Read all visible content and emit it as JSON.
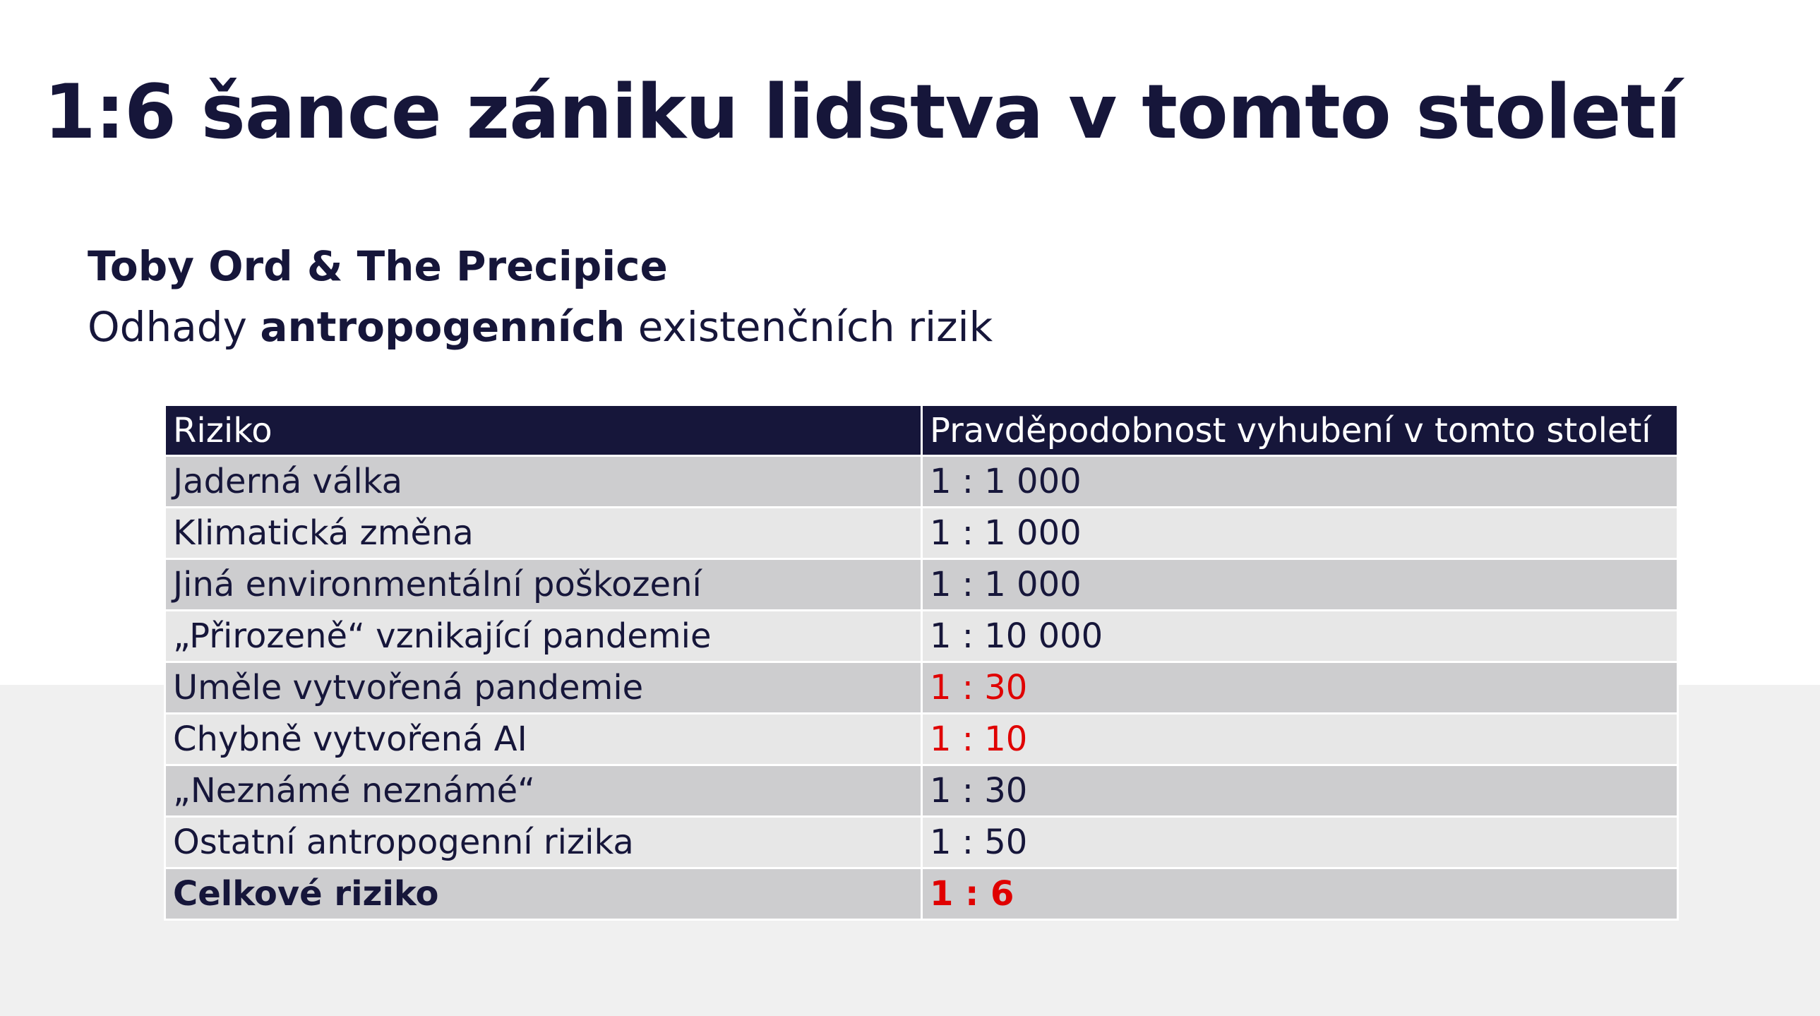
{
  "slide": {
    "title": "1:6 šance zániku lidstva v tomto století",
    "author_line": "Toby Ord & The Precipice",
    "description": {
      "before": "Odhady ",
      "emphasis": "antropogenních",
      "after": " existenčních rizik"
    }
  },
  "table": {
    "headers": [
      "Riziko",
      "Pravděpodobnost vyhubení v tomto století"
    ],
    "rows": [
      {
        "risk": "Jaderná válka",
        "probability": "1 : 1 000"
      },
      {
        "risk": "Klimatická změna",
        "probability": "1 : 1 000"
      },
      {
        "risk": "Jiná environmentální poškození",
        "probability": "1 : 1 000"
      },
      {
        "risk": "„Přirozeně“ vznikající pandemie",
        "probability": "1 : 10 000"
      },
      {
        "risk": "Uměle vytvořená pandemie",
        "probability": "1 : 30"
      },
      {
        "risk": "Chybně vytvořená AI",
        "probability": "1 : 10"
      },
      {
        "risk": "„Neznámé neznámé“",
        "probability": "1 : 30"
      },
      {
        "risk": "Ostatní antropogenní rizika",
        "probability": "1 : 50"
      },
      {
        "risk": "Celkové riziko",
        "probability": "1 : 6"
      }
    ]
  },
  "colors": {
    "primary": "#16163a",
    "highlight": "#e00000",
    "row_dark": "#cdcdcf",
    "row_light": "#e7e7e7",
    "band": "#f0f0f0"
  }
}
